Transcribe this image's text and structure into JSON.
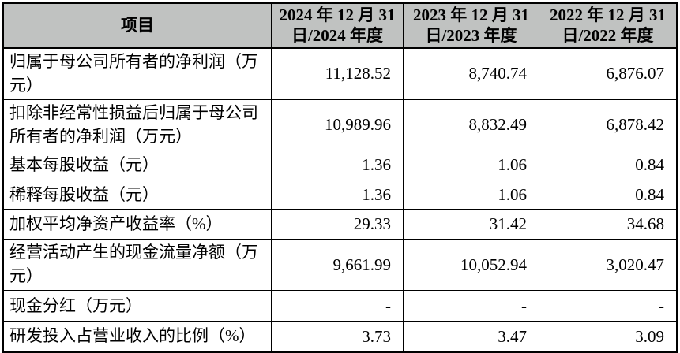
{
  "table": {
    "header": {
      "item_col": "项目",
      "year_cols": [
        "2024 年 12 月 31 日/2024 年度",
        "2023 年 12 月 31 日/2023 年度",
        "2022 年 12 月 31 日/2022 年度"
      ]
    },
    "rows": [
      {
        "label": "归属于母公司所有者的净利润（万元）",
        "v2024": "11,128.52",
        "v2023": "8,740.74",
        "v2022": "6,876.07"
      },
      {
        "label": "扣除非经常性损益后归属于母公司所有者的净利润（万元）",
        "v2024": "10,989.96",
        "v2023": "8,832.49",
        "v2022": "6,878.42"
      },
      {
        "label": "基本每股收益（元）",
        "v2024": "1.36",
        "v2023": "1.06",
        "v2022": "0.84"
      },
      {
        "label": "稀释每股收益（元）",
        "v2024": "1.36",
        "v2023": "1.06",
        "v2022": "0.84"
      },
      {
        "label": "加权平均净资产收益率（%）",
        "v2024": "29.33",
        "v2023": "31.42",
        "v2022": "34.68"
      },
      {
        "label": "经营活动产生的现金流量净额（万元）",
        "v2024": "9,661.99",
        "v2023": "10,052.94",
        "v2022": "3,020.47"
      },
      {
        "label": "现金分红（万元）",
        "v2024": "-",
        "v2023": "-",
        "v2022": "-"
      },
      {
        "label": "研发投入占营业收入的比例（%）",
        "v2024": "3.73",
        "v2023": "3.47",
        "v2022": "3.09"
      }
    ]
  },
  "colors": {
    "header_bg": "#c0c2c1",
    "border": "#000000",
    "text": "#000000"
  }
}
